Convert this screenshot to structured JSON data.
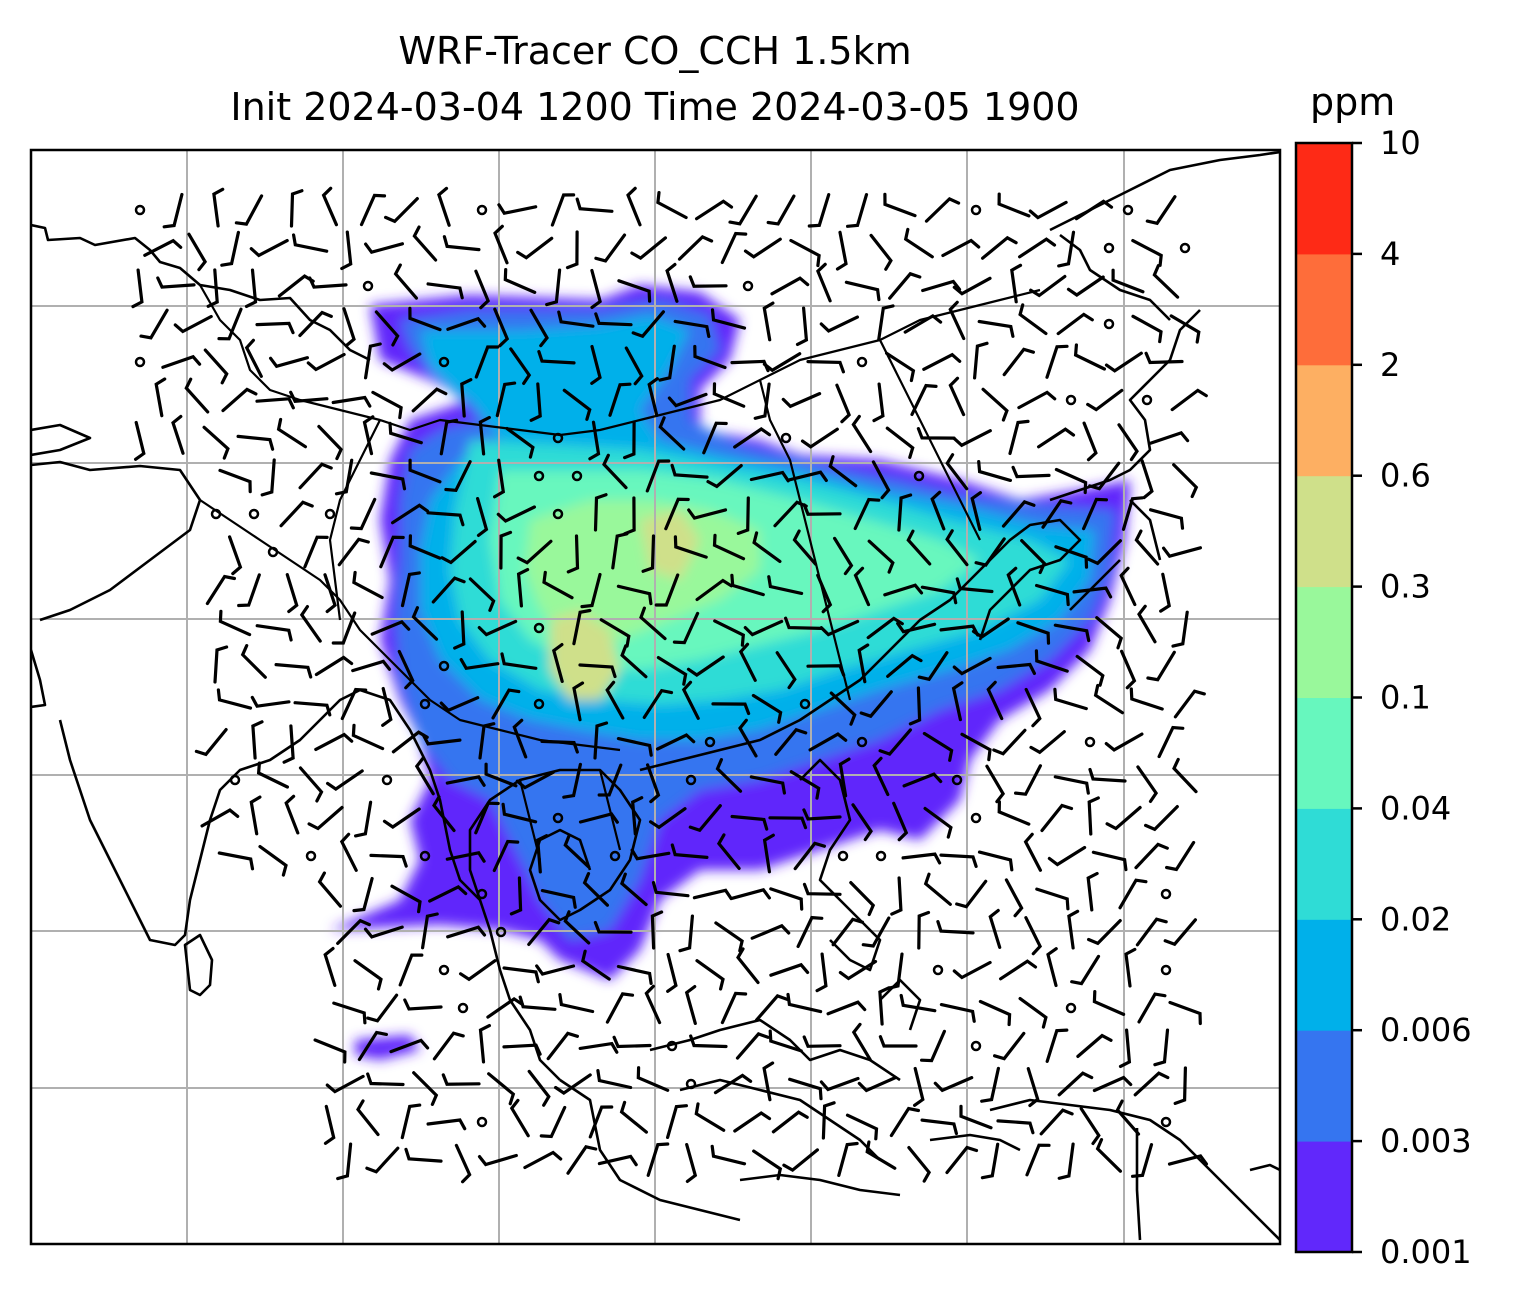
{
  "title": {
    "line1": "WRF-Tracer CO_CCH 1.5km",
    "line2": "Init 2024-03-04 1200 Time 2024-03-05 1900"
  },
  "colorbar": {
    "unit": "ppm",
    "ticks": [
      "0.001",
      "0.003",
      "0.006",
      "0.02",
      "0.04",
      "0.1",
      "0.3",
      "0.6",
      "2",
      "4",
      "10"
    ],
    "colors": [
      "#6128fb",
      "#3575f0",
      "#00b0ea",
      "#2fdcd6",
      "#67f7be",
      "#99f89b",
      "#cfe08a",
      "#fdaf62",
      "#fe6d3a",
      "#fe2a16"
    ]
  },
  "map": {
    "gridlines": "on",
    "gridline_color": "#b0b0b0",
    "coastline_color": "#000000",
    "features": [
      "coastlines",
      "country-borders",
      "wind-barbs",
      "tracer-concentration"
    ]
  }
}
